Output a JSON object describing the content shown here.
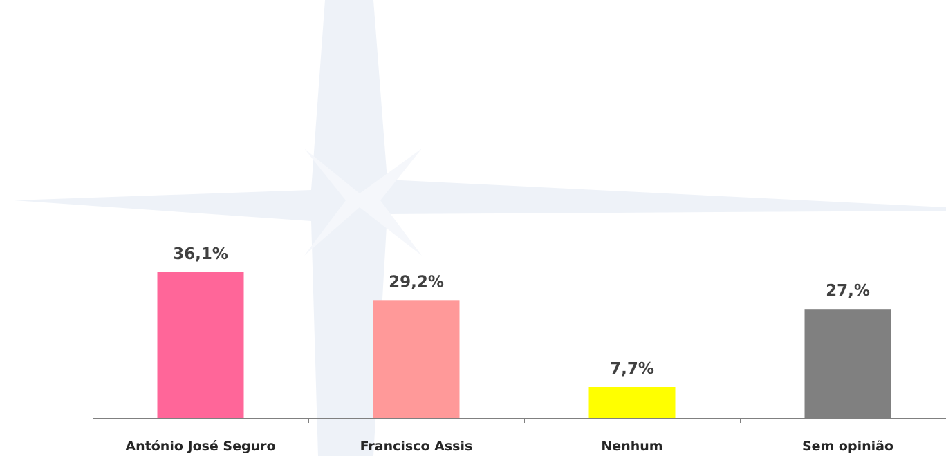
{
  "chart_data": {
    "type": "bar",
    "categories": [
      "António José Seguro",
      "Francisco Assis",
      "Nenhum",
      "Sem opinião"
    ],
    "values": [
      36.1,
      29.2,
      7.7,
      27
    ],
    "value_labels": [
      "36,1%",
      "29,2%",
      "7,7%",
      "27,%"
    ],
    "colors": [
      "#ff6699",
      "#ff9999",
      "#ffff00",
      "#808080"
    ]
  }
}
